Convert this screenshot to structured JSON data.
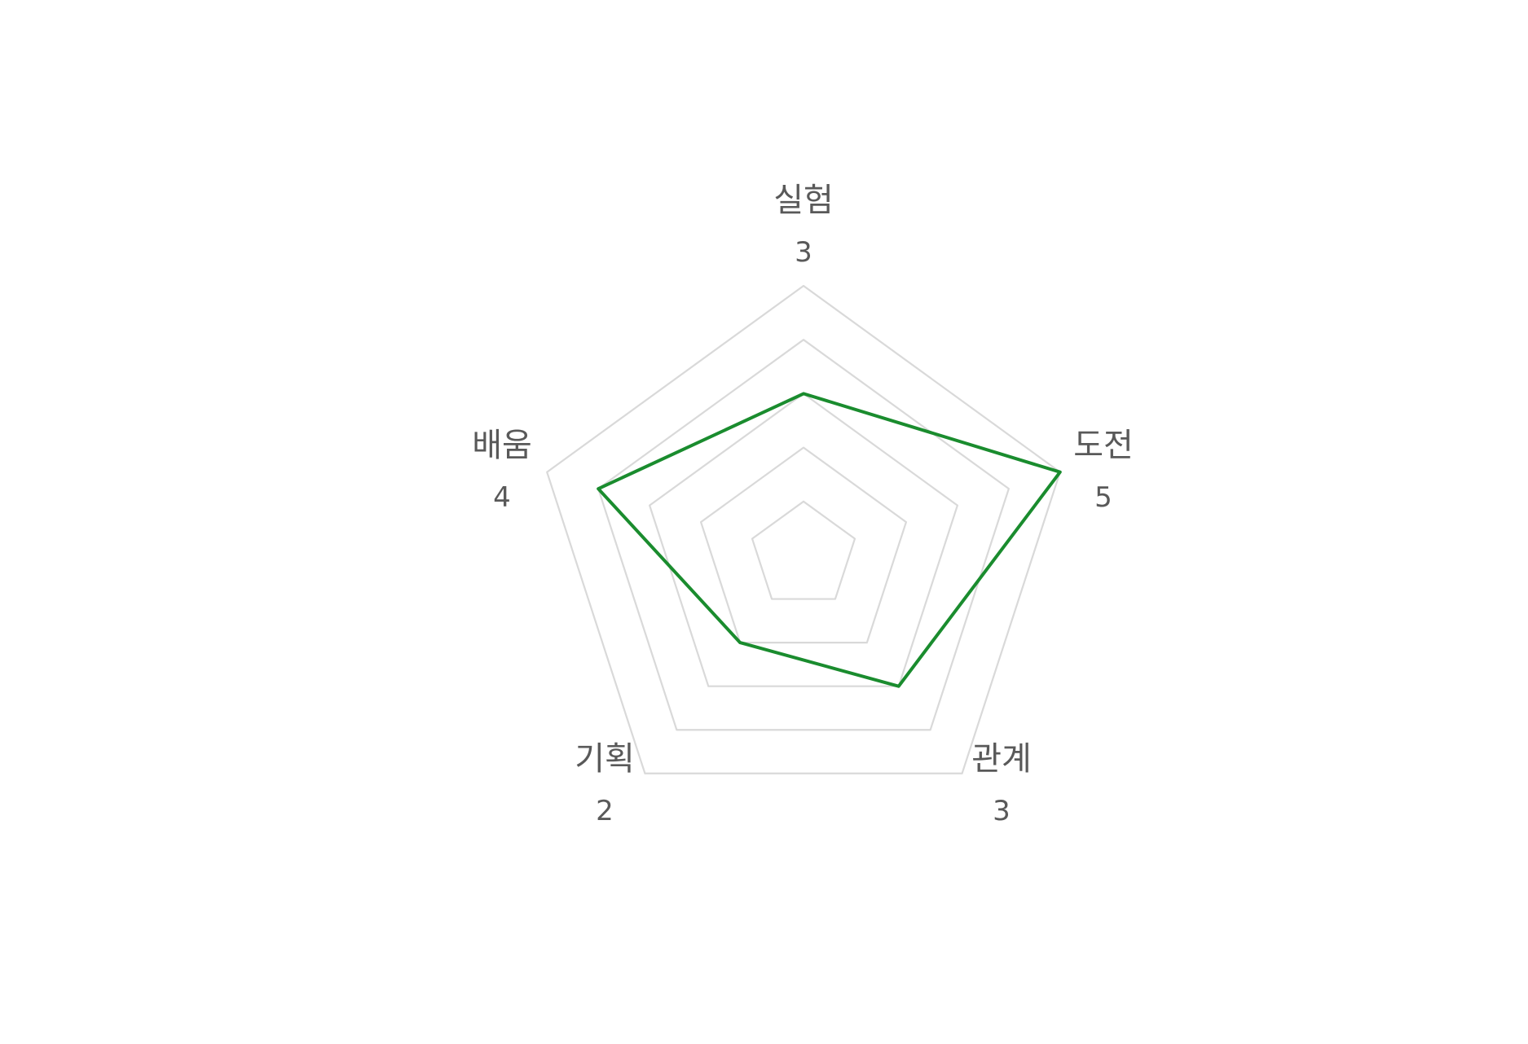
{
  "chart_data": {
    "type": "radar",
    "categories": [
      "실험",
      "도전",
      "관계",
      "기획",
      "배움"
    ],
    "values": [
      3,
      5,
      3,
      2,
      4
    ],
    "data_labels": [
      "3",
      "5",
      "3",
      "2",
      "4"
    ],
    "rlim": [
      0,
      5
    ],
    "grid_levels": [
      1,
      2,
      3,
      4,
      5
    ],
    "grid": true,
    "legend": "none",
    "colors": {
      "series": "#1a8c2e",
      "grid": "#d9d9d9",
      "text": "#595959"
    }
  }
}
